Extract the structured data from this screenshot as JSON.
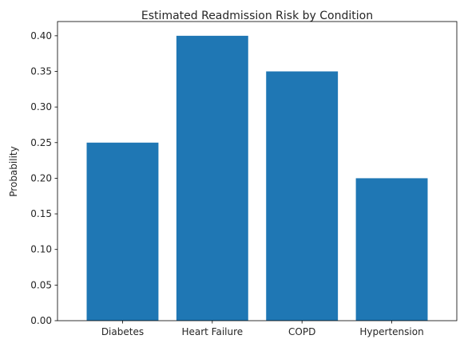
{
  "chart_data": {
    "type": "bar",
    "title": "Estimated Readmission Risk by Condition",
    "xlabel": "",
    "ylabel": "Probability",
    "categories": [
      "Diabetes",
      "Heart Failure",
      "COPD",
      "Hypertension"
    ],
    "values": [
      0.25,
      0.4,
      0.35,
      0.2
    ],
    "ylim": [
      0,
      0.42
    ],
    "yticks": [
      "0.00",
      "0.05",
      "0.10",
      "0.15",
      "0.20",
      "0.25",
      "0.30",
      "0.35",
      "0.40"
    ],
    "bar_color": "#1f77b4",
    "grid": false,
    "legend": "none"
  }
}
